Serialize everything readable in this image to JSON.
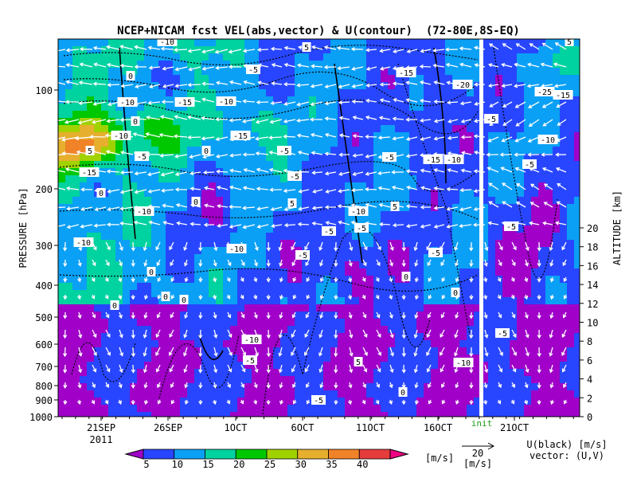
{
  "chart_data": {
    "type": "heatmap",
    "title": "NCEP+NICAM fcst VEL(abs,vector) & U(contour)  (72-80E,8S-EQ)",
    "ylabel_left": "PRESSURE [hPa]",
    "ylabel_right": "ALTITUDE [km]",
    "pressure_ticks": [
      "100",
      "200",
      "300",
      "400",
      "500",
      "600",
      "700",
      "800",
      "900",
      "1000"
    ],
    "altitude_ticks": [
      "0",
      "2",
      "4",
      "6",
      "8",
      "10",
      "12",
      "14",
      "16",
      "18",
      "20"
    ],
    "x_ticks": [
      "21SEP",
      "26SEP",
      "1OCT",
      "6OCT",
      "11OCT",
      "16OCT",
      "21OCT"
    ],
    "year_label": "2011",
    "init_label": "init",
    "colorbar": {
      "ticks": [
        "5",
        "10",
        "15",
        "20",
        "25",
        "30",
        "35",
        "40"
      ],
      "unit": "[m/s]",
      "colors": [
        "#a000c8",
        "#2846ff",
        "#0aa0f5",
        "#00d2a0",
        "#00c800",
        "#a0d200",
        "#e6af2d",
        "#f08228",
        "#e63c3c",
        "#f00082"
      ]
    },
    "vector_key": {
      "value": "20",
      "unit": "[m/s]"
    },
    "legend_text": [
      "U(black) [m/s]",
      "vector: (U,V)"
    ],
    "contour_labels": [
      "-10",
      "5",
      "5",
      "-5",
      "0",
      "-15",
      "-20",
      "-25",
      "-15",
      "-10",
      "-15",
      "-10",
      "-5",
      "0",
      "-10",
      "-15",
      "-10",
      "-5",
      "-5",
      "0",
      "5",
      "-15",
      "-15",
      "-5",
      "-10",
      "-5",
      "0",
      "-5",
      "0",
      "-10",
      "5",
      "5",
      "-10",
      "-10",
      "-5",
      "-5",
      "-10",
      "-5",
      "0",
      "0",
      "-5",
      "0",
      "0",
      "0",
      "0",
      "-5",
      "-5",
      "-10",
      "-5",
      "-10",
      "-5",
      "5",
      "0",
      "-5"
    ]
  }
}
